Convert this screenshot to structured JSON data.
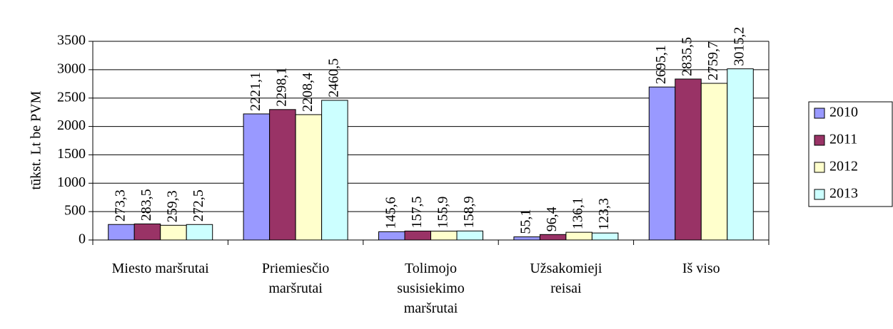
{
  "chart_data": {
    "type": "bar",
    "y_label": "tūkst. Lt be PVM",
    "categories": [
      "Miesto maršrutai",
      "Priemiesčio\nmaršrutai",
      "Tolimojo\nsusisiekimo\nmaršrutai",
      "Užsakomieji\nreisai",
      "Iš viso"
    ],
    "series": [
      {
        "name": "2010",
        "color": "#9999ff",
        "values": [
          273.3,
          2221.1,
          145.6,
          55.1,
          2695.1
        ],
        "value_labels": [
          "273,3",
          "2221,1",
          "145,6",
          "55,1",
          "2695,1"
        ]
      },
      {
        "name": "2011",
        "color": "#993366",
        "values": [
          283.5,
          2298.1,
          157.5,
          96.4,
          2835.5
        ],
        "value_labels": [
          "283,5",
          "2298,1",
          "157,5",
          "96,4",
          "2835,5"
        ]
      },
      {
        "name": "2012",
        "color": "#ffffcc",
        "values": [
          259.3,
          2208.4,
          155.9,
          136.1,
          2759.7
        ],
        "value_labels": [
          "259,3",
          "2208,4",
          "155,9",
          "136,1",
          "2759,7"
        ]
      },
      {
        "name": "2013",
        "color": "#ccffff",
        "values": [
          272.5,
          2460.5,
          158.9,
          123.3,
          3015.2
        ],
        "value_labels": [
          "272,5",
          "2460,5",
          "158,9",
          "123,3",
          "3015,2"
        ]
      }
    ],
    "ylim": [
      0,
      3500
    ],
    "yticks": [
      0,
      500,
      1000,
      1500,
      2000,
      2500,
      3000,
      3500
    ],
    "grid": true,
    "legend": "right"
  }
}
